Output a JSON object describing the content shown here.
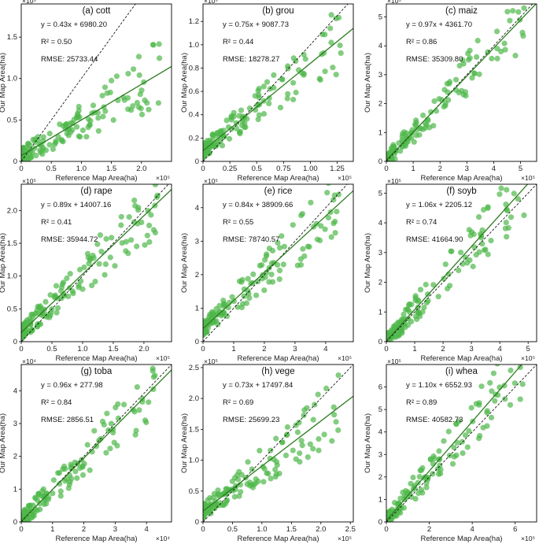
{
  "figure": {
    "xlabel": "Reference Map Area(ha)",
    "ylabel": "Our Map Area(ha)"
  },
  "colors": {
    "point": "#4fb84a",
    "fit": "#2e7d22",
    "identity": "#000000",
    "axis": "#000000"
  },
  "chart_data": [
    {
      "type": "scatter",
      "title": "(a) cott",
      "xlim": [
        0,
        250000
      ],
      "ylim": [
        0,
        190000
      ],
      "xticks": [
        0,
        0.5,
        1.0,
        1.5,
        2.0
      ],
      "yticks": [
        0,
        0.5,
        1.0,
        1.5
      ],
      "xexp": "×10⁵",
      "yexp": "×10⁵",
      "slope": 0.43,
      "intercept": 6980.2,
      "equation": "y = 0.43x + 6980.20",
      "r2": "R² = 0.50",
      "rmse": "RMSE: 25733.44"
    },
    {
      "type": "scatter",
      "title": "(b) grou",
      "xlim": [
        0,
        140000
      ],
      "ylim": [
        0,
        135000
      ],
      "xticks": [
        0,
        0.25,
        0.5,
        0.75,
        1.0,
        1.25
      ],
      "yticks": [
        0,
        0.2,
        0.4,
        0.6,
        0.8,
        1.0,
        1.2
      ],
      "xexp": "×10⁵",
      "yexp": "×10⁵",
      "slope": 0.75,
      "intercept": 9087.73,
      "equation": "y = 0.75x + 9087.73",
      "r2": "R² = 0.44",
      "rmse": "RMSE: 18278.27"
    },
    {
      "type": "scatter",
      "title": "(c) maiz",
      "xlim": [
        0,
        560000
      ],
      "ylim": [
        0,
        545000
      ],
      "xticks": [
        0,
        1,
        2,
        3,
        4,
        5
      ],
      "yticks": [
        0,
        1,
        2,
        3,
        4,
        5
      ],
      "xexp": "×10⁵",
      "yexp": "×10⁵",
      "slope": 0.97,
      "intercept": 4361.7,
      "equation": "y = 0.97x + 4361.70",
      "r2": "R² = 0.86",
      "rmse": "RMSE: 35309.80"
    },
    {
      "type": "scatter",
      "title": "(d) rape",
      "xlim": [
        0,
        245000
      ],
      "ylim": [
        0,
        240000
      ],
      "xticks": [
        0,
        0.5,
        1.0,
        1.5,
        2.0
      ],
      "yticks": [
        0,
        0.5,
        1.0,
        1.5,
        2.0
      ],
      "xexp": "×10⁵",
      "yexp": "×10⁵",
      "slope": 0.89,
      "intercept": 14007.16,
      "equation": "y = 0.89x + 14007.16",
      "r2": "R² = 0.41",
      "rmse": "RMSE: 35944.72"
    },
    {
      "type": "scatter",
      "title": "(e) rice",
      "xlim": [
        0,
        490000
      ],
      "ylim": [
        0,
        470000
      ],
      "xticks": [
        0,
        1,
        2,
        3,
        4
      ],
      "yticks": [
        0,
        1,
        2,
        3,
        4
      ],
      "xexp": "×10⁵",
      "yexp": "×10⁵",
      "slope": 0.84,
      "intercept": 38909.66,
      "equation": "y = 0.84x + 38909.66",
      "r2": "R² = 0.55",
      "rmse": "RMSE: 78740.57"
    },
    {
      "type": "scatter",
      "title": "(f) soyb",
      "xlim": [
        0,
        530000
      ],
      "ylim": [
        0,
        530000
      ],
      "xticks": [
        0,
        1,
        2,
        3,
        4,
        5
      ],
      "yticks": [
        0,
        1,
        2,
        3,
        4,
        5
      ],
      "xexp": "×10⁵",
      "yexp": "×10⁵",
      "slope": 1.06,
      "intercept": 2205.12,
      "equation": "y = 1.06x + 2205.12",
      "r2": "R² = 0.74",
      "rmse": "RMSE: 41664.90"
    },
    {
      "type": "scatter",
      "title": "(g) toba",
      "xlim": [
        0,
        48000
      ],
      "ylim": [
        0,
        48000
      ],
      "xticks": [
        0,
        1,
        2,
        3,
        4
      ],
      "yticks": [
        0,
        1,
        2,
        3,
        4
      ],
      "xexp": "×10⁴",
      "yexp": "×10⁴",
      "slope": 0.96,
      "intercept": 277.98,
      "equation": "y = 0.96x + 277.98",
      "r2": "R² = 0.84",
      "rmse": "RMSE: 2856.51"
    },
    {
      "type": "scatter",
      "title": "(h) vege",
      "xlim": [
        0,
        255000
      ],
      "ylim": [
        0,
        255000
      ],
      "xticks": [
        0,
        0.5,
        1.0,
        1.5,
        2.0,
        2.5
      ],
      "yticks": [
        0,
        0.5,
        1.0,
        1.5,
        2.0,
        2.5
      ],
      "xexp": "×10⁵",
      "yexp": "×10⁵",
      "slope": 0.73,
      "intercept": 17497.84,
      "equation": "y = 0.73x + 17497.84",
      "r2": "R² = 0.69",
      "rmse": "RMSE: 25699.23"
    },
    {
      "type": "scatter",
      "title": "(i) whea",
      "xlim": [
        0,
        700000
      ],
      "ylim": [
        0,
        700000
      ],
      "xticks": [
        0,
        2,
        4,
        6
      ],
      "yticks": [
        0,
        1,
        2,
        3,
        4,
        5,
        6
      ],
      "xexp": "×10⁵",
      "yexp": "×10⁵",
      "slope": 1.1,
      "intercept": 6552.93,
      "equation": "y = 1.10x + 6552.93",
      "r2": "R² = 0.89",
      "rmse": "RMSE: 40582.73"
    }
  ]
}
